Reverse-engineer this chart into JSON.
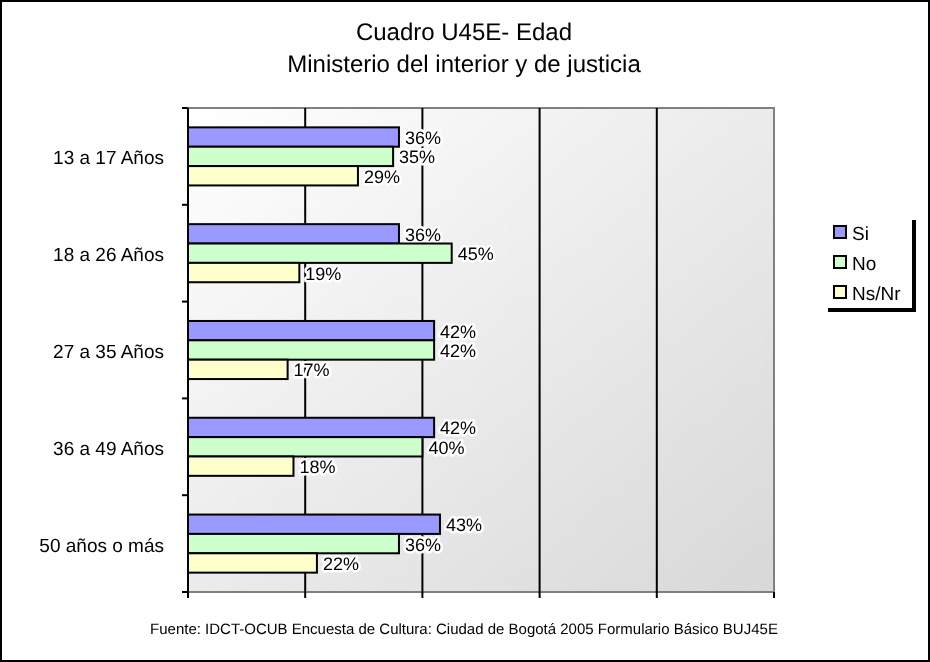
{
  "chart_data": {
    "type": "bar",
    "orientation": "horizontal",
    "title": "Cuadro U45E- Edad",
    "subtitle": "Ministerio del interior y de justicia",
    "categories": [
      "13 a 17 Años",
      "18 a 26 Años",
      "27 a 35 Años",
      "36 a 49 Años",
      "50 años o más"
    ],
    "series": [
      {
        "name": "Si",
        "color": "#9999ff",
        "values": [
          36,
          36,
          42,
          42,
          43
        ],
        "value_labels": [
          "36%",
          "36%",
          "42%",
          "42%",
          "43%"
        ]
      },
      {
        "name": "No",
        "color": "#ccffcc",
        "values": [
          35,
          45,
          42,
          40,
          36
        ],
        "value_labels": [
          "35%",
          "45%",
          "42%",
          "40%",
          "36%"
        ]
      },
      {
        "name": "Ns/Nr",
        "color": "#ffffcc",
        "values": [
          29,
          19,
          17,
          18,
          22
        ],
        "value_labels": [
          "29%",
          "19%",
          "17%",
          "18%",
          "22%"
        ]
      }
    ],
    "xlim": [
      0,
      100
    ],
    "xticks": [
      {
        "value": 0,
        "label": null
      },
      {
        "value": 20,
        "label": null
      },
      {
        "value": 40,
        "label": null
      },
      {
        "value": 60,
        "label": null
      },
      {
        "value": 80,
        "label": null
      },
      {
        "value": 100,
        "label": null
      }
    ],
    "tick_labels": "y",
    "grid": "x",
    "legend": "right",
    "annotations": [
      "Fuente: IDCT-OCUB Encuesta de Cultura: Ciudad de Bogotá 2005 Formulario Básico BUJ45E"
    ]
  }
}
